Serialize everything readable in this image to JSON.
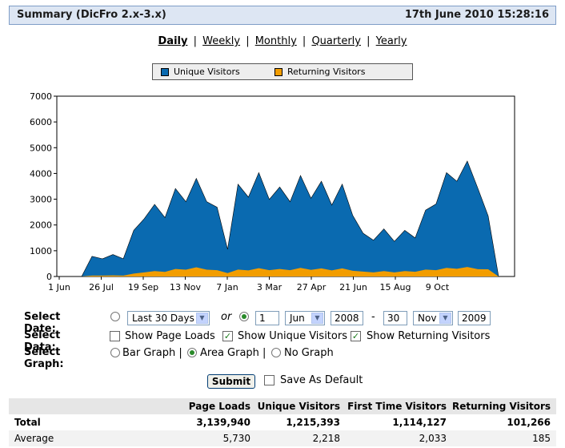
{
  "header": {
    "title": "Summary (DicFro 2.x-3.x)",
    "datetime": "17th June 2010 15:28:16"
  },
  "periods": {
    "daily": "Daily",
    "weekly": "Weekly",
    "monthly": "Monthly",
    "quarterly": "Quarterly",
    "yearly": "Yearly",
    "sep": "|"
  },
  "legend": {
    "unique": "Unique Visitors",
    "returning": "Returning Visitors",
    "unique_color": "#0a6ab0",
    "returning_color": "#f29d00"
  },
  "chart_data": {
    "type": "area",
    "x_ticks": [
      "1 Jun",
      "26 Jul",
      "19 Sep",
      "13 Nov",
      "7 Jan",
      "3 Mar",
      "27 Apr",
      "21 Jun",
      "15 Aug",
      "9 Oct"
    ],
    "y_ticks": [
      "0",
      "1000",
      "2000",
      "3000",
      "4000",
      "5000",
      "6000",
      "7000"
    ],
    "ylim": [
      0,
      7000
    ],
    "series": [
      {
        "name": "Unique Visitors",
        "values": [
          0,
          700,
          780,
          760,
          780,
          1600,
          2550,
          2500,
          2600,
          3050,
          3300,
          3400,
          3300,
          2400,
          1200,
          3200,
          3500,
          3600,
          3400,
          3100,
          3300,
          3500,
          3450,
          3300,
          3150,
          3200,
          2700,
          1500,
          1600,
          1650,
          1550,
          1600,
          1700,
          2300,
          3200,
          3600,
          4200,
          4000,
          3900,
          2100,
          0
        ]
      },
      {
        "name": "Returning Visitors",
        "values": [
          0,
          30,
          40,
          40,
          40,
          100,
          180,
          190,
          200,
          260,
          300,
          320,
          300,
          220,
          150,
          240,
          270,
          290,
          280,
          260,
          280,
          300,
          290,
          280,
          270,
          280,
          250,
          170,
          180,
          190,
          180,
          190,
          210,
          240,
          280,
          300,
          340,
          330,
          320,
          250,
          0
        ]
      }
    ]
  },
  "form": {
    "select_date_label": "Select Date:",
    "range_value": "Last 30 Days",
    "or_label": "or",
    "from_day": "1",
    "from_month": "Jun",
    "from_year": "2008",
    "dash": "-",
    "to_day": "30",
    "to_month": "Nov",
    "to_year": "2009",
    "select_data_label": "Select Data:",
    "show_page_loads": "Show Page Loads",
    "show_unique": "Show Unique Visitors",
    "show_returning": "Show Returning Visitors",
    "select_graph_label": "Select Graph:",
    "bar_graph": "Bar Graph |",
    "area_graph": "Area Graph |",
    "no_graph": "No Graph",
    "submit": "Submit",
    "save_default": "Save As Default"
  },
  "table": {
    "headers": [
      "Page Loads",
      "Unique Visitors",
      "First Time Visitors",
      "Returning Visitors"
    ],
    "rows": [
      {
        "label": "Total",
        "values": [
          "3,139,940",
          "1,215,393",
          "1,114,127",
          "101,266"
        ]
      },
      {
        "label": "Average",
        "values": [
          "5,730",
          "2,218",
          "2,033",
          "185"
        ]
      }
    ]
  }
}
